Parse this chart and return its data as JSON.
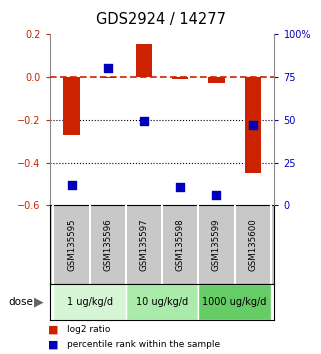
{
  "title": "GDS2924 / 14277",
  "samples": [
    "GSM135595",
    "GSM135596",
    "GSM135597",
    "GSM135598",
    "GSM135599",
    "GSM135600"
  ],
  "log2_ratio": [
    -0.27,
    -0.005,
    0.15,
    -0.01,
    -0.03,
    -0.45
  ],
  "percentile": [
    12.0,
    80.0,
    49.0,
    11.0,
    6.0,
    47.0
  ],
  "ylim_left": [
    -0.6,
    0.2
  ],
  "ylim_right": [
    0,
    100
  ],
  "yticks_left": [
    -0.6,
    -0.4,
    -0.2,
    0.0,
    0.2
  ],
  "yticks_right": [
    0,
    25,
    50,
    75,
    100
  ],
  "doses": [
    {
      "label": "1 ug/kg/d",
      "samples": [
        0,
        1
      ],
      "color": "#d5f5d5"
    },
    {
      "label": "10 ug/kg/d",
      "samples": [
        2,
        3
      ],
      "color": "#aaeaaa"
    },
    {
      "label": "1000 ug/kg/d",
      "samples": [
        4,
        5
      ],
      "color": "#66cc66"
    }
  ],
  "bar_color": "#cc2200",
  "dot_color": "#0000bb",
  "bar_width": 0.45,
  "dot_size": 28,
  "legend_log2": "log2 ratio",
  "legend_percentile": "percentile rank within the sample",
  "dose_label": "dose",
  "background_color": "#ffffff",
  "sample_bg_color": "#c8c8c8",
  "dashed_color": "#cc2200"
}
